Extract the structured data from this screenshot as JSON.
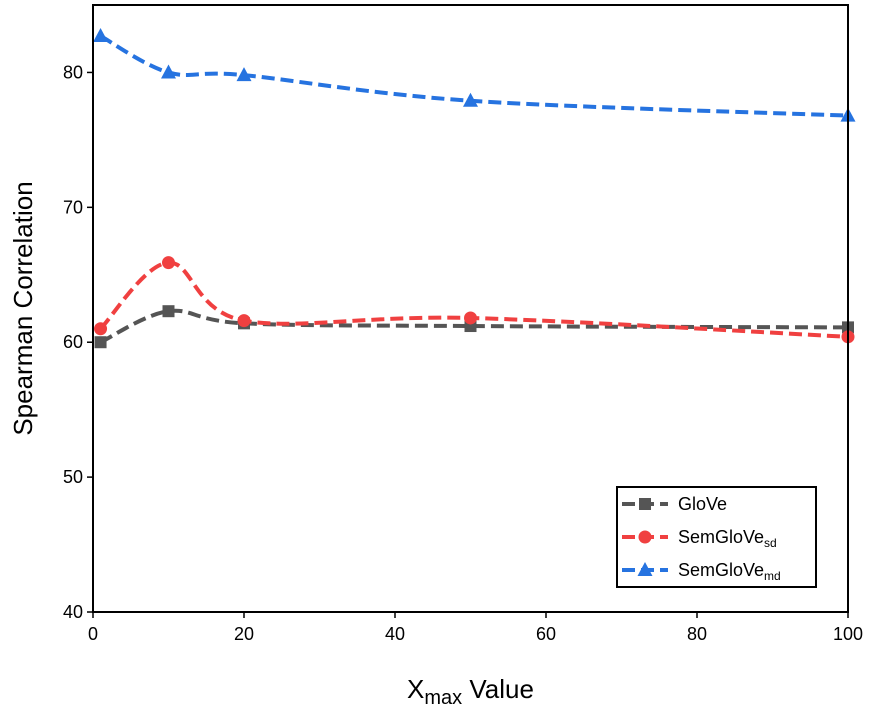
{
  "chart_data": {
    "type": "line",
    "xlabel": {
      "main": "X",
      "sub": "max",
      "rest": " Value"
    },
    "ylabel": "Spearman Correlation",
    "xlim": [
      0,
      100
    ],
    "ylim": [
      40,
      85
    ],
    "xticks": [
      0,
      20,
      40,
      60,
      80,
      100
    ],
    "yticks": [
      40,
      50,
      60,
      70,
      80
    ],
    "grid": false,
    "legend_position": "lower-right",
    "x": [
      1,
      10,
      20,
      50,
      100
    ],
    "series": [
      {
        "name": "GloVe",
        "name_main": "GloVe",
        "name_sub": "",
        "color": "#555555",
        "marker": "square",
        "values": [
          60.0,
          62.3,
          61.4,
          61.2,
          61.1
        ]
      },
      {
        "name": "SemGloVe_sd",
        "name_main": "SemGloVe",
        "name_sub": "sd",
        "color": "#f04040",
        "marker": "circle",
        "values": [
          61.0,
          65.9,
          61.6,
          61.8,
          60.4
        ]
      },
      {
        "name": "SemGloVe_md",
        "name_main": "SemGloVe",
        "name_sub": "md",
        "color": "#2673e0",
        "marker": "triangle",
        "values": [
          82.7,
          80.0,
          79.8,
          77.9,
          76.8
        ]
      }
    ]
  }
}
